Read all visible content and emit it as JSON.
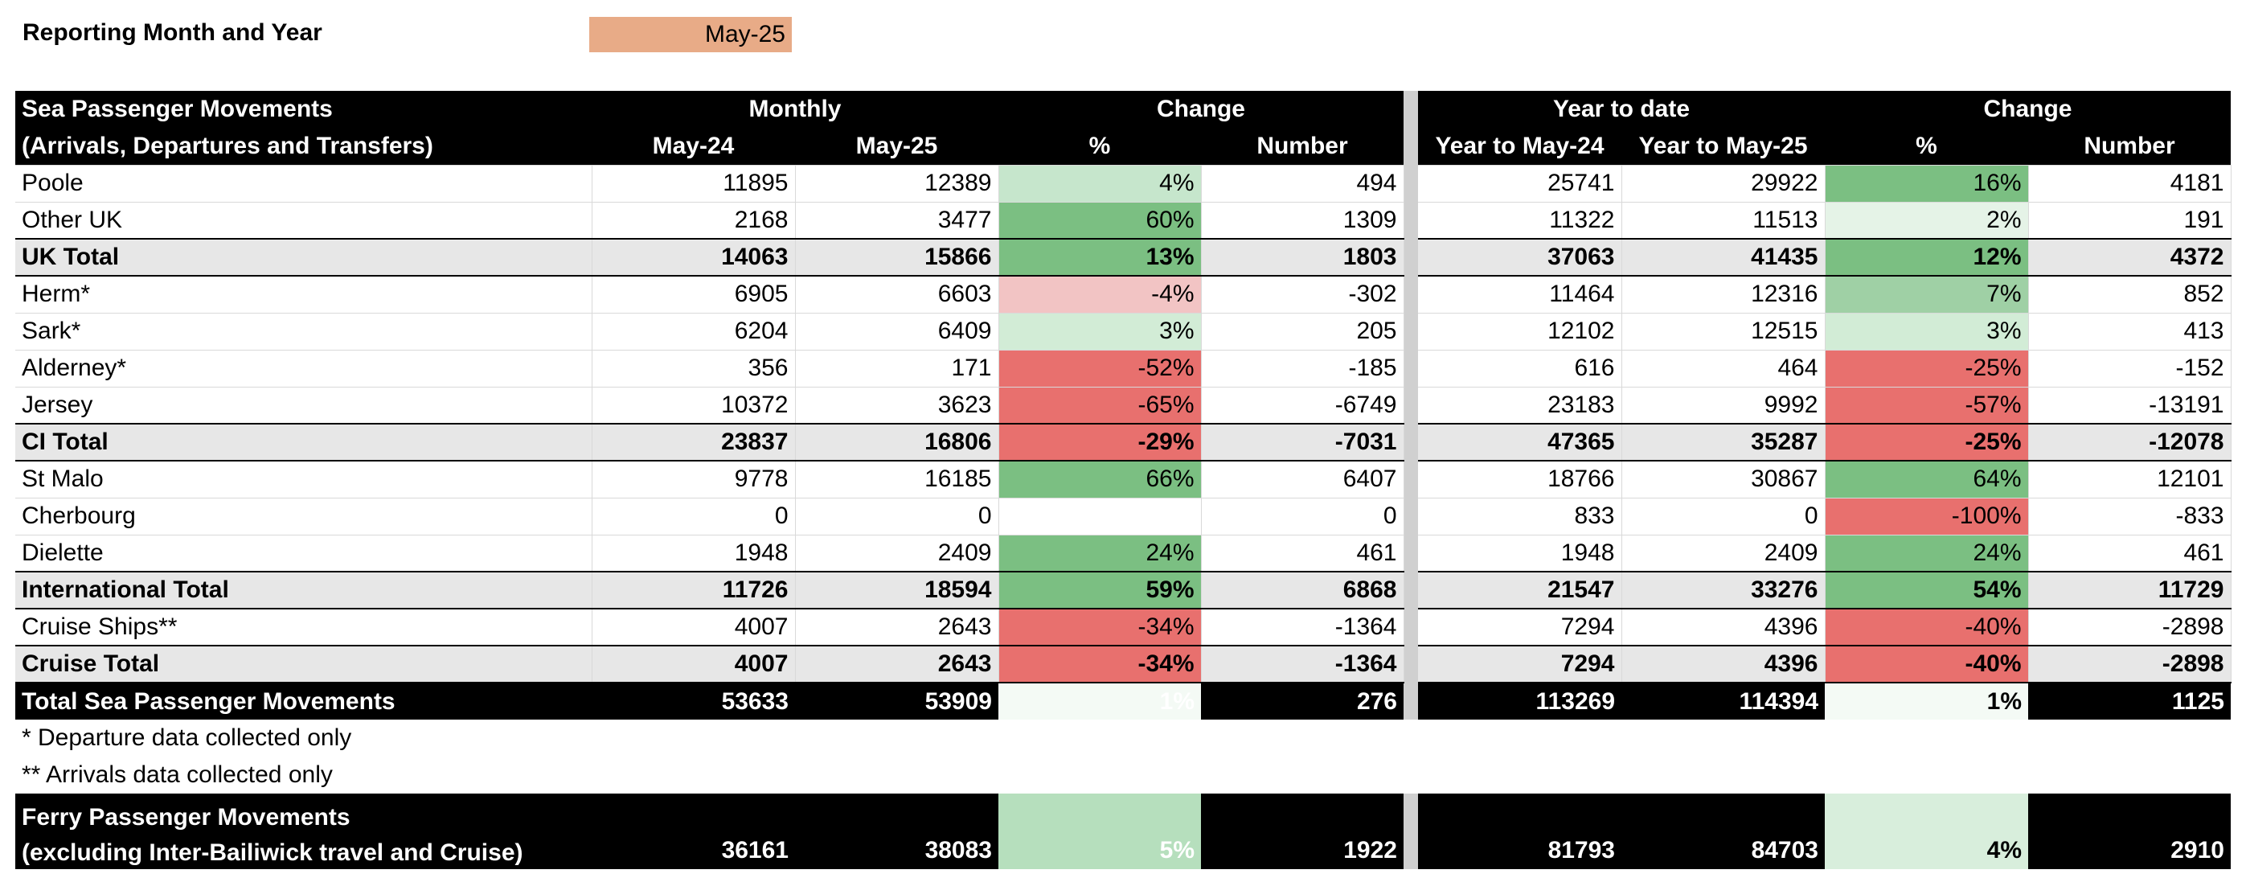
{
  "report": {
    "label": "Reporting Month and Year",
    "value": "May-25"
  },
  "header": {
    "row1": {
      "title": "Sea Passenger Movements",
      "monthly": "Monthly",
      "change": "Change",
      "ytd": "Year to date",
      "change2": "Change"
    },
    "row2": {
      "title": "(Arrivals, Departures and Transfers)",
      "may24": "May-24",
      "may25": "May-25",
      "pct": "%",
      "number": "Number",
      "ytd24": "Year to May-24",
      "ytd25": "Year to May-25",
      "pct2": "%",
      "number2": "Number"
    }
  },
  "rows": [
    {
      "type": "normal",
      "name": "Poole",
      "may24": "11895",
      "may25": "12389",
      "pct": "4%",
      "num": "494",
      "ytd24": "25741",
      "ytd25": "29922",
      "pct2": "16%",
      "num2": "4181",
      "c1": "#c6e6cc",
      "c2": "#7bbf82"
    },
    {
      "type": "normal",
      "name": "Other UK",
      "may24": "2168",
      "may25": "3477",
      "pct": "60%",
      "num": "1309",
      "ytd24": "11322",
      "ytd25": "11513",
      "pct2": "2%",
      "num2": "191",
      "c1": "#7bbf82",
      "c2": "#e5f3e7"
    },
    {
      "type": "total",
      "name": "UK Total",
      "may24": "14063",
      "may25": "15866",
      "pct": "13%",
      "num": "1803",
      "ytd24": "37063",
      "ytd25": "41435",
      "pct2": "12%",
      "num2": "4372",
      "c1": "#7bbf82",
      "c2": "#7bbf82"
    },
    {
      "type": "normal",
      "name": "Herm*",
      "may24": "6905",
      "may25": "6603",
      "pct": "-4%",
      "num": "-302",
      "ytd24": "11464",
      "ytd25": "12316",
      "pct2": "7%",
      "num2": "852",
      "c1": "#f2c4c4",
      "c2": "#9fd0a5"
    },
    {
      "type": "normal",
      "name": "Sark*",
      "may24": "6204",
      "may25": "6409",
      "pct": "3%",
      "num": "205",
      "ytd24": "12102",
      "ytd25": "12515",
      "pct2": "3%",
      "num2": "413",
      "c1": "#d2ecd6",
      "c2": "#d2ecd6"
    },
    {
      "type": "normal",
      "name": "Alderney*",
      "may24": "356",
      "may25": "171",
      "pct": "-52%",
      "num": "-185",
      "ytd24": "616",
      "ytd25": "464",
      "pct2": "-25%",
      "num2": "-152",
      "c1": "#e8706e",
      "c2": "#e8706e"
    },
    {
      "type": "normal",
      "name": "Jersey",
      "may24": "10372",
      "may25": "3623",
      "pct": "-65%",
      "num": "-6749",
      "ytd24": "23183",
      "ytd25": "9992",
      "pct2": "-57%",
      "num2": "-13191",
      "c1": "#e8706e",
      "c2": "#e8706e"
    },
    {
      "type": "total",
      "name": "CI Total",
      "may24": "23837",
      "may25": "16806",
      "pct": "-29%",
      "num": "-7031",
      "ytd24": "47365",
      "ytd25": "35287",
      "pct2": "-25%",
      "num2": "-12078",
      "c1": "#e8706e",
      "c2": "#e8706e"
    },
    {
      "type": "normal",
      "name": "St Malo",
      "may24": "9778",
      "may25": "16185",
      "pct": "66%",
      "num": "6407",
      "ytd24": "18766",
      "ytd25": "30867",
      "pct2": "64%",
      "num2": "12101",
      "c1": "#7bbf82",
      "c2": "#7bbf82"
    },
    {
      "type": "normal",
      "name": "Cherbourg",
      "may24": "0",
      "may25": "0",
      "pct": "",
      "num": "0",
      "ytd24": "833",
      "ytd25": "0",
      "pct2": "-100%",
      "num2": "-833",
      "c1": "#ffffff",
      "c2": "#e8706e"
    },
    {
      "type": "normal",
      "name": "Dielette",
      "may24": "1948",
      "may25": "2409",
      "pct": "24%",
      "num": "461",
      "ytd24": "1948",
      "ytd25": "2409",
      "pct2": "24%",
      "num2": "461",
      "c1": "#7bbf82",
      "c2": "#7bbf82"
    },
    {
      "type": "total",
      "name": "International Total",
      "may24": "11726",
      "may25": "18594",
      "pct": "59%",
      "num": "6868",
      "ytd24": "21547",
      "ytd25": "33276",
      "pct2": "54%",
      "num2": "11729",
      "c1": "#7bbf82",
      "c2": "#7bbf82"
    },
    {
      "type": "normal",
      "name": "Cruise Ships**",
      "may24": "4007",
      "may25": "2643",
      "pct": "-34%",
      "num": "-1364",
      "ytd24": "7294",
      "ytd25": "4396",
      "pct2": "-40%",
      "num2": "-2898",
      "c1": "#e8706e",
      "c2": "#e8706e"
    },
    {
      "type": "total",
      "name": "Cruise Total",
      "may24": "4007",
      "may25": "2643",
      "pct": "-34%",
      "num": "-1364",
      "ytd24": "7294",
      "ytd25": "4396",
      "pct2": "-40%",
      "num2": "-2898",
      "c1": "#e8706e",
      "c2": "#e8706e"
    },
    {
      "type": "grand",
      "name": "Total Sea Passenger Movements",
      "may24": "53633",
      "may25": "53909",
      "pct": "1%",
      "num": "276",
      "ytd24": "113269",
      "ytd25": "114394",
      "pct2": "1%",
      "num2": "1125",
      "c1": "#f4faf5",
      "c2": "#f4faf5"
    }
  ],
  "notes": [
    "* Departure data collected only",
    "** Arrivals data collected only"
  ],
  "ferry": {
    "line1": "Ferry Passenger Movements",
    "line2": "(excluding Inter-Bailiwick travel and Cruise)",
    "may24": "36161",
    "may25": "38083",
    "pct": "5%",
    "num": "1922",
    "ytd24": "81793",
    "ytd25": "84703",
    "pct2": "4%",
    "num2": "2910",
    "c1": "#b6dfbd",
    "c2": "#d8eedc"
  }
}
